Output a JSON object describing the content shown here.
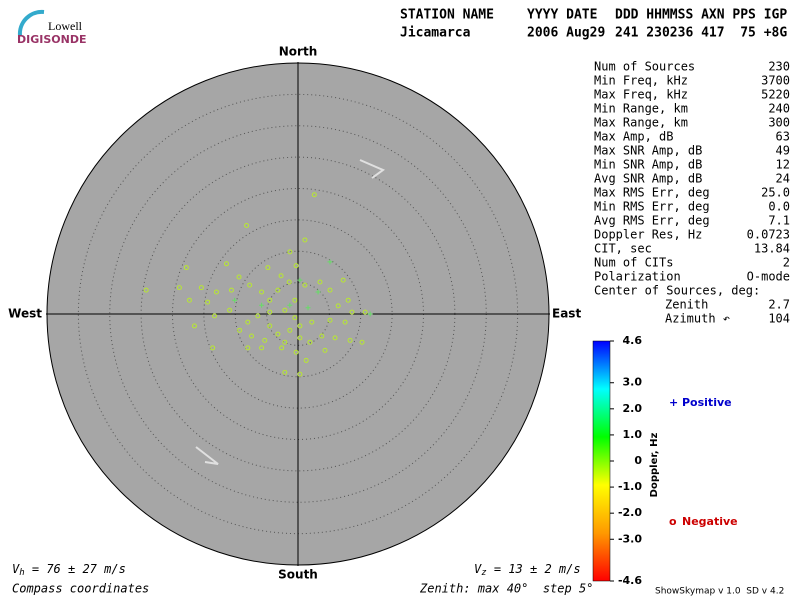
{
  "header": {
    "logo_top": "Lowell",
    "logo_bottom": "DIGISONDE",
    "columns": [
      "STATION NAME",
      "YYYY DATE",
      "DDD HHMMSS AXN PPS IGP"
    ],
    "values": [
      "Jicamarca",
      "2006 Aug29",
      "241 230236 417  75 +8G"
    ]
  },
  "stats": [
    [
      "Num of Sources",
      "230"
    ],
    [
      "Min Freq, kHz",
      "3700"
    ],
    [
      "Max Freq, kHz",
      "5220"
    ],
    [
      "Min Range, km",
      "240"
    ],
    [
      "Max Range, km",
      "300"
    ],
    [
      "Max Amp, dB",
      "63"
    ],
    [
      "Max SNR Amp, dB",
      "49"
    ],
    [
      "Min SNR Amp, dB",
      "12"
    ],
    [
      "Avg SNR Amp, dB",
      "24"
    ],
    [
      "Max RMS Err, deg",
      "25.0"
    ],
    [
      "Min RMS Err, deg",
      "0.0"
    ],
    [
      "Avg RMS Err, deg",
      "7.1"
    ],
    [
      "Doppler Res, Hz",
      "0.0723"
    ],
    [
      "CIT, sec",
      "13.84"
    ],
    [
      "Num of CITs",
      "2"
    ],
    [
      "Polarization",
      "O-mode"
    ]
  ],
  "center": {
    "title": "Center of Sources, deg:",
    "rows": [
      [
        "Zenith",
        "2.7"
      ],
      [
        "Azimuth ↶",
        "104"
      ]
    ]
  },
  "chart_data": {
    "type": "polar-scatter",
    "directions": {
      "north": "North",
      "south": "South",
      "east": "East",
      "west": "West"
    },
    "xlim": [
      -40,
      40
    ],
    "ylim": [
      -40,
      40
    ],
    "rings": [
      5,
      10,
      15,
      20,
      25,
      30,
      35
    ],
    "series": [
      {
        "name": "Negative",
        "symbol": "o",
        "color": "#cc0000",
        "mark_color": "#b8e830",
        "x": [
          2.6,
          -8.2,
          1.1,
          -1.3,
          -17.8,
          -11.4,
          -9.4,
          -4.8,
          -2.7,
          -0.3,
          -18.9,
          -24.2,
          -15.4,
          -13.0,
          -17.3,
          -14.4,
          -10.6,
          -7.7,
          -5.8,
          -3.2,
          -1.4,
          1.1,
          3.5,
          5.1,
          7.2,
          8.0,
          6.4,
          8.6,
          10.7,
          5.1,
          2.2,
          -0.5,
          -2.1,
          -4.5,
          -6.4,
          -8.0,
          -9.3,
          -7.4,
          -5.3,
          -3.2,
          -1.3,
          0.3,
          1.9,
          3.8,
          5.9,
          8.3,
          10.2,
          -8.0,
          -5.8,
          -2.6,
          -0.3,
          1.3,
          -2.1,
          0.3,
          -13.6,
          -16.5,
          -13.3,
          -10.9,
          -4.5,
          -0.5,
          7.5,
          4.3,
          -4.5,
          -2.1,
          0.3
        ],
        "values": [
          19.0,
          14.1,
          11.8,
          9.9,
          7.4,
          8.0,
          5.9,
          7.4,
          6.1,
          7.7,
          4.2,
          3.8,
          4.2,
          3.5,
          2.2,
          1.9,
          3.8,
          4.6,
          3.5,
          3.8,
          5.1,
          4.6,
          5.1,
          3.8,
          5.4,
          2.2,
          1.3,
          0.3,
          0.3,
          -1.0,
          -1.3,
          -0.6,
          0.6,
          0.3,
          -0.3,
          -1.3,
          -2.6,
          -3.5,
          -4.2,
          -3.2,
          -2.6,
          -3.8,
          -4.5,
          -3.5,
          -3.8,
          -4.2,
          -4.5,
          -5.4,
          -5.4,
          -5.4,
          -6.1,
          -7.4,
          -9.3,
          -9.6,
          -5.4,
          -1.9,
          -0.3,
          0.6,
          2.2,
          2.2,
          -1.3,
          -5.8,
          -1.9,
          -4.5,
          -1.9
        ]
      },
      {
        "name": "Positive",
        "symbol": "+",
        "color": "#0000cc",
        "mark_color": "#66dd66",
        "x": [
          0.3,
          -1.3,
          3.2,
          11.5,
          -10.1,
          -5.8,
          5.1,
          1.6
        ],
        "values": [
          5.4,
          1.4,
          3.5,
          0.0,
          2.2,
          1.4,
          8.3,
          1.0
        ]
      }
    ],
    "colorbar": {
      "label": "Doppler, Hz",
      "lim": [
        -4.6,
        4.6
      ],
      "colors": [
        "#ff0000",
        "#ff9900",
        "#ffff00",
        "#00ff00",
        "#00ffff",
        "#0000ff"
      ],
      "ticks": [
        {
          "value": 4.6,
          "label": "4.6"
        },
        {
          "value": 3,
          "label": "3.0"
        },
        {
          "value": 2,
          "label": "2.0"
        },
        {
          "value": 1,
          "label": "1.0"
        },
        0,
        {
          "value": -1,
          "label": "-1.0"
        },
        {
          "value": -2,
          "label": "-2.0"
        },
        {
          "value": -3,
          "label": "-3.0"
        },
        {
          "value": -4.6,
          "label": "-4.6"
        }
      ]
    }
  },
  "footer": {
    "vh_symbol": "V",
    "vh_sub": "h",
    "vh_text": " = 76 ± 27 m/s",
    "vz_symbol": "V",
    "vz_sub": "z",
    "vz_text": " = 13 ± 2 m/s",
    "coordinates": "Compass coordinates",
    "zenith": "Zenith: max 40°  step 5°",
    "version": "ShowSkymap v 1.0  SD v 4.2"
  }
}
